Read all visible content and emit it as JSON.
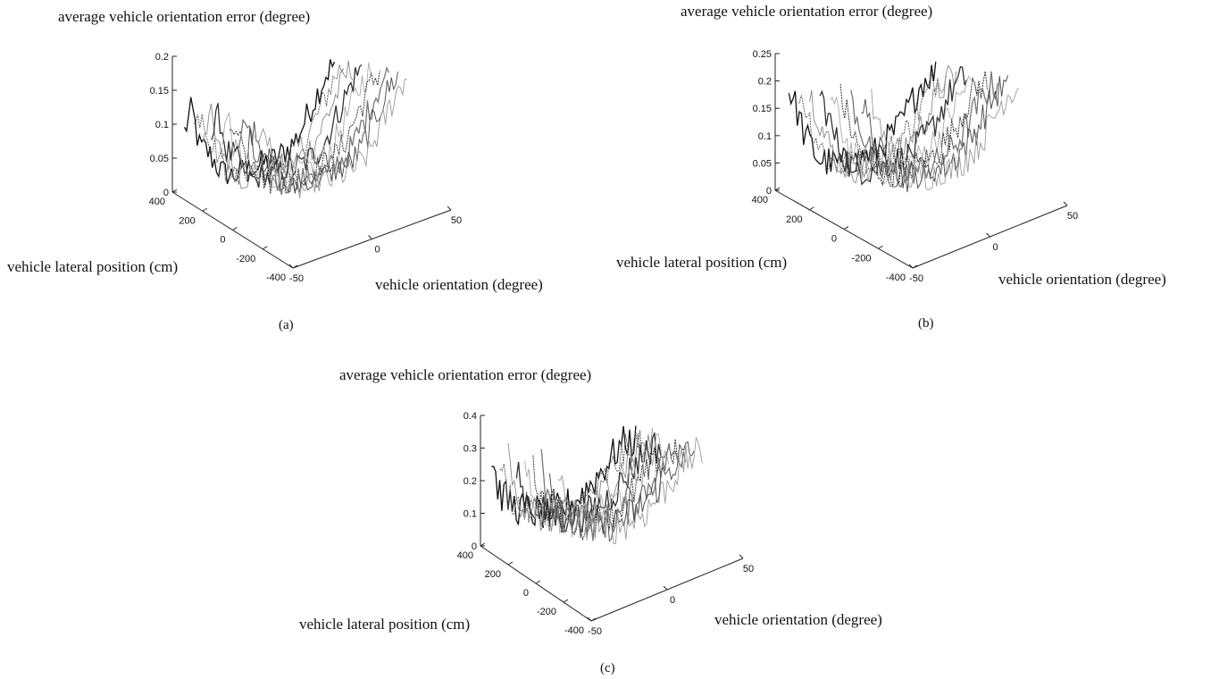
{
  "chart_data": [
    {
      "id": "a",
      "type": "surface-3d",
      "panel_label": "(a)",
      "zlabel": "average vehicle orientation error (degree)",
      "ylabel": "vehicle lateral position (cm)",
      "xlabel": "vehicle orientation (degree)",
      "zlim": [
        0,
        0.2
      ],
      "z_ticks": [
        "0",
        "0.05",
        "0.1",
        "0.15",
        "0.2"
      ],
      "y_ticks": [
        "400",
        "200",
        "0",
        "-200",
        "-400"
      ],
      "x_ticks": [
        "-50",
        "0",
        "50"
      ],
      "grid": false,
      "profile": {
        "orientation": [
          -50,
          -45,
          -40,
          -35,
          -30,
          -25,
          -20,
          -10,
          0,
          10,
          20,
          25,
          30,
          35,
          40,
          45,
          50
        ],
        "error": [
          0.1,
          0.13,
          0.07,
          0.06,
          0.04,
          0.02,
          0.01,
          0.01,
          0.01,
          0.01,
          0.02,
          0.03,
          0.05,
          0.07,
          0.09,
          0.11,
          0.12
        ]
      },
      "noise": 0.022
    },
    {
      "id": "b",
      "type": "surface-3d",
      "panel_label": "(b)",
      "zlabel": "average vehicle orientation error (degree)",
      "ylabel": "vehicle lateral position (cm)",
      "xlabel": "vehicle orientation (degree)",
      "zlim": [
        0,
        0.25
      ],
      "z_ticks": [
        "0",
        "0.05",
        "0.1",
        "0.15",
        "0.2",
        "0.25"
      ],
      "y_ticks": [
        "400",
        "200",
        "0",
        "-200",
        "-400"
      ],
      "x_ticks": [
        "-50",
        "0",
        "50"
      ],
      "grid": false,
      "profile": {
        "orientation": [
          -50,
          -45,
          -40,
          -35,
          -30,
          -25,
          -20,
          -10,
          0,
          10,
          20,
          25,
          30,
          35,
          40,
          45,
          50
        ],
        "error": [
          0.2,
          0.16,
          0.11,
          0.08,
          0.05,
          0.04,
          0.03,
          0.02,
          0.02,
          0.02,
          0.04,
          0.05,
          0.07,
          0.09,
          0.11,
          0.12,
          0.12
        ]
      },
      "noise": 0.03
    },
    {
      "id": "c",
      "type": "surface-3d",
      "panel_label": "(c)",
      "zlabel": "average vehicle orientation error (degree)",
      "ylabel": "vehicle lateral position (cm)",
      "xlabel": "vehicle orientation (degree)",
      "zlim": [
        0,
        0.4
      ],
      "z_ticks": [
        "0",
        "0.1",
        "0.2",
        "0.3",
        "0.4"
      ],
      "y_ticks": [
        "400",
        "200",
        "0",
        "-200",
        "-400"
      ],
      "x_ticks": [
        "-50",
        "0",
        "50"
      ],
      "grid": false,
      "profile": {
        "orientation": [
          -50,
          -45,
          -40,
          -35,
          -30,
          -25,
          -20,
          -10,
          0,
          10,
          20,
          25,
          30,
          35,
          40,
          45,
          50
        ],
        "error": [
          0.3,
          0.18,
          0.15,
          0.12,
          0.1,
          0.09,
          0.07,
          0.05,
          0.05,
          0.06,
          0.09,
          0.11,
          0.13,
          0.15,
          0.17,
          0.17,
          0.16
        ]
      },
      "noise": 0.055
    }
  ]
}
